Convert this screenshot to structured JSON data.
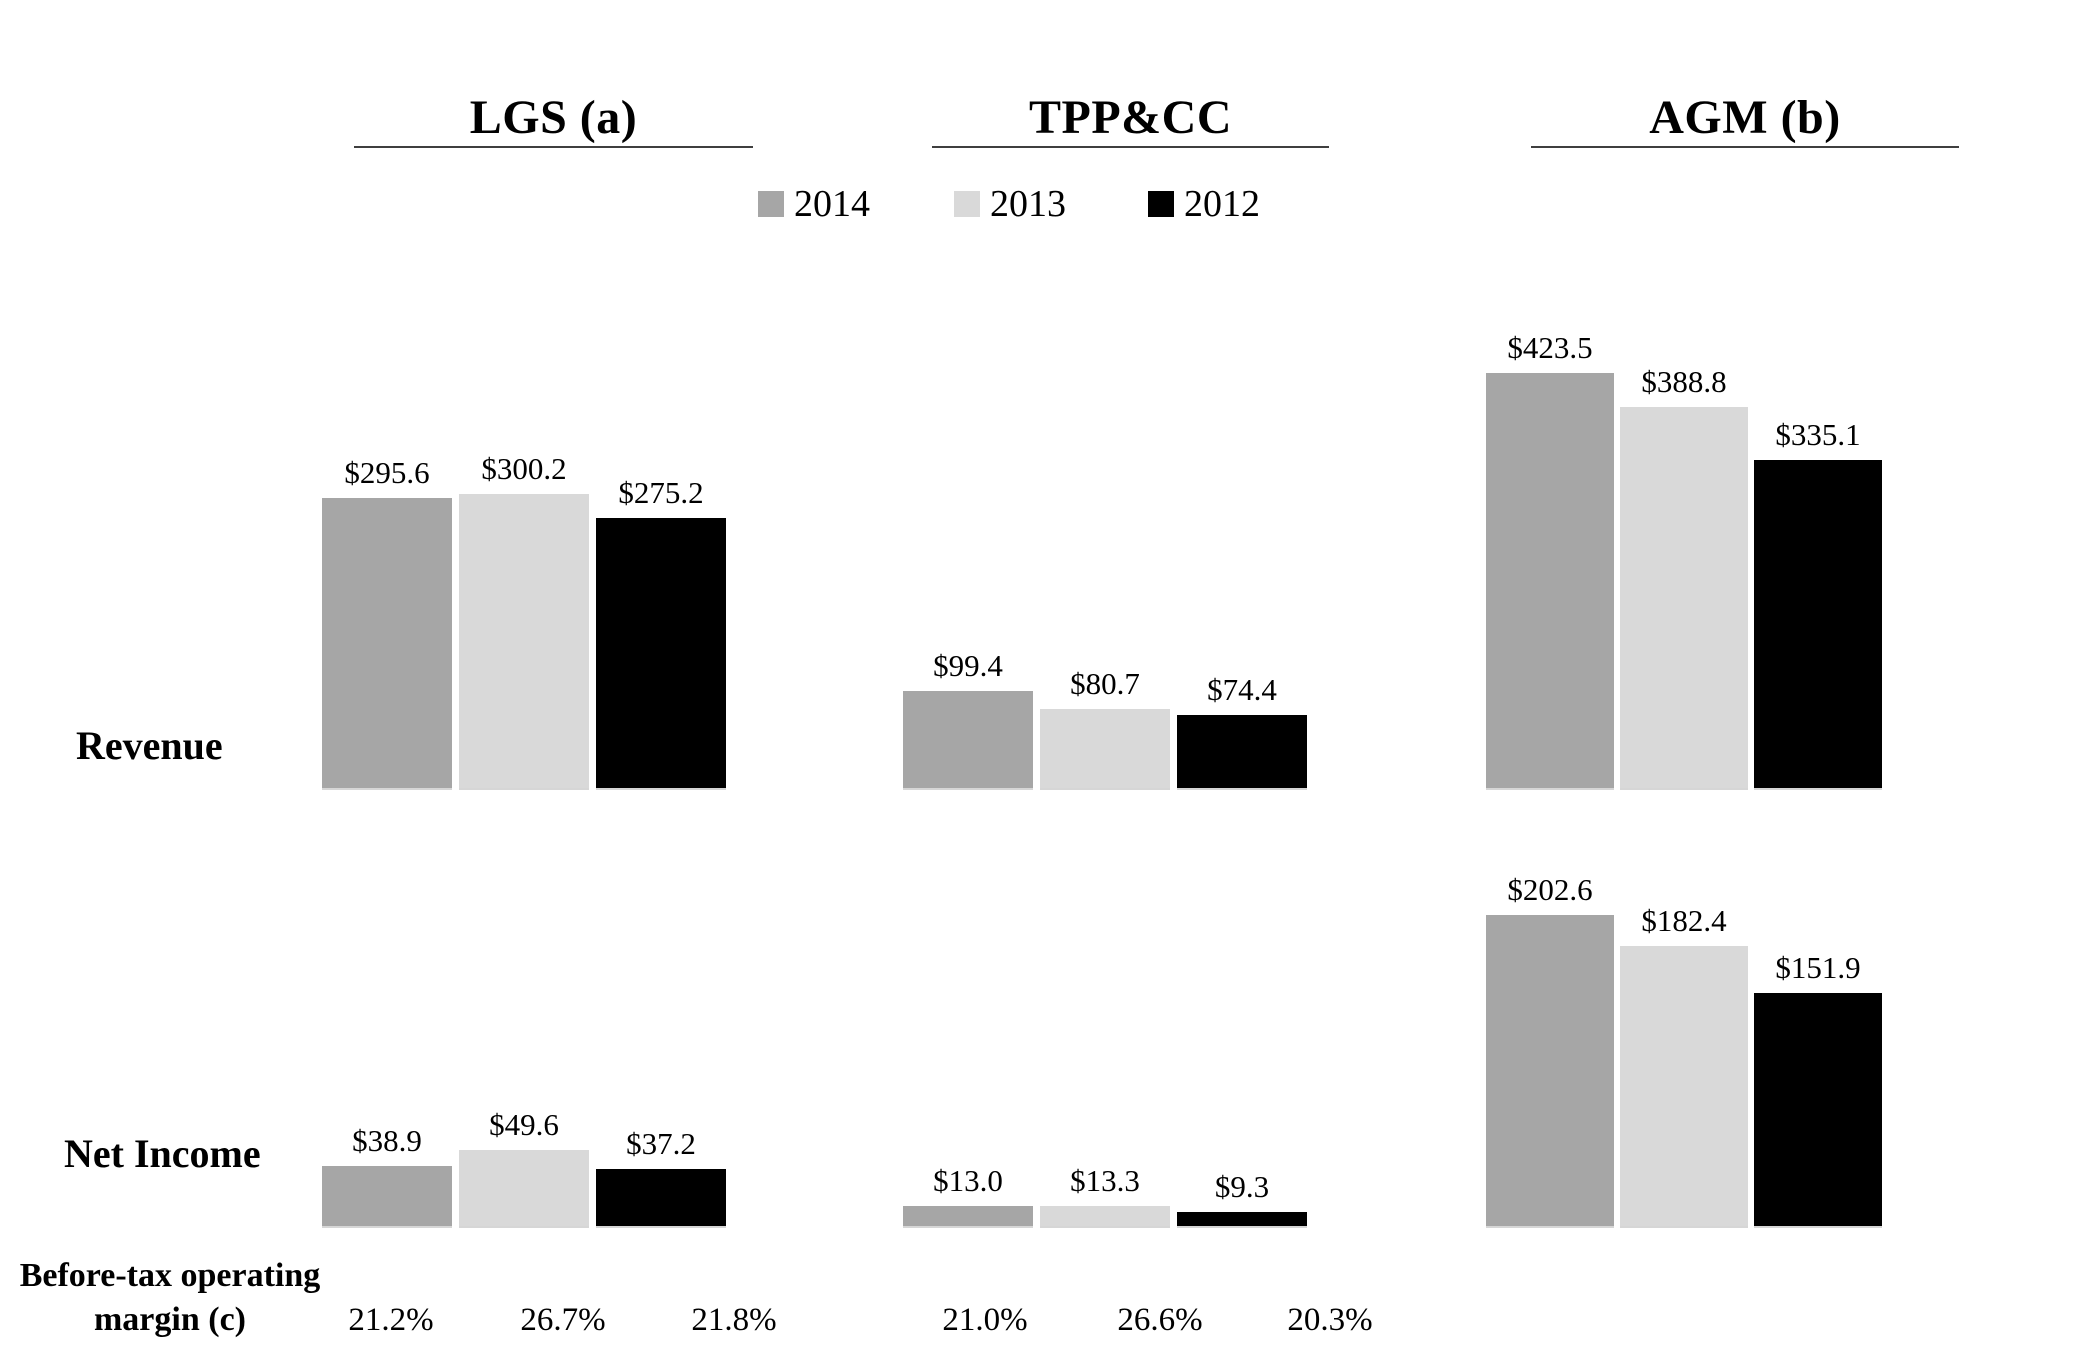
{
  "chart_data": {
    "type": "bar",
    "title": "",
    "units": "dollars (millions implied)",
    "grid": false,
    "legend_position": "top-center",
    "years": [
      "2014",
      "2013",
      "2012"
    ],
    "year_colors": [
      "#a6a6a6",
      "#d9d9d9",
      "#000000"
    ],
    "row_labels": [
      "Revenue",
      "Net Income"
    ],
    "margin_row_label": "Before-tax operating margin (c)",
    "groups": [
      {
        "name": "LGS (a)",
        "revenue": {
          "values": [
            295.6,
            300.2,
            275.2
          ],
          "labels": [
            "$295.6",
            "$300.2",
            "$275.2"
          ]
        },
        "net_income": {
          "values": [
            38.9,
            49.6,
            37.2
          ],
          "labels": [
            "$38.9",
            "$49.6",
            "$37.2"
          ]
        },
        "before_tax_operating_margin": [
          "21.2%",
          "26.7%",
          "21.8%"
        ]
      },
      {
        "name": "TPP&CC",
        "revenue": {
          "values": [
            99.4,
            80.7,
            74.4
          ],
          "labels": [
            "$99.4",
            "$80.7",
            "$74.4"
          ]
        },
        "net_income": {
          "values": [
            13.0,
            13.3,
            9.3
          ],
          "labels": [
            "$13.0",
            "$13.3",
            "$9.3"
          ]
        },
        "before_tax_operating_margin": [
          "21.0%",
          "26.6%",
          "20.3%"
        ]
      },
      {
        "name": "AGM (b)",
        "revenue": {
          "values": [
            423.5,
            388.8,
            335.1
          ],
          "labels": [
            "$423.5",
            "$388.8",
            "$335.1"
          ]
        },
        "net_income": {
          "values": [
            202.6,
            182.4,
            151.9
          ],
          "labels": [
            "$202.6",
            "$182.4",
            "$151.9"
          ]
        },
        "before_tax_operating_margin": []
      }
    ]
  },
  "labels": {
    "revenue": "Revenue",
    "net_income": "Net Income",
    "margin_line1": "Before-tax operating",
    "margin_line2": "margin (c)"
  }
}
